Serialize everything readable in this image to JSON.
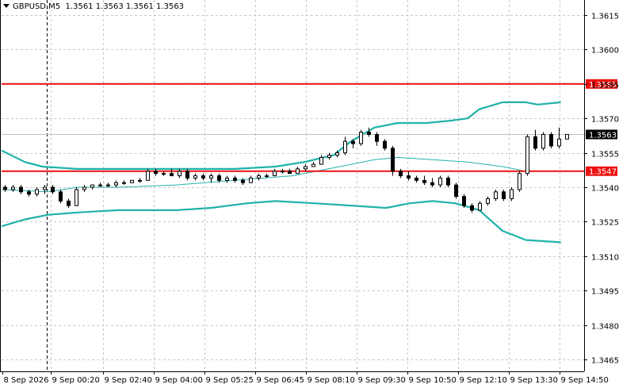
{
  "header": {
    "symbol": "GBPUSD,M5",
    "ohlc": "1.3561 1.3563 1.3561 1.3563"
  },
  "colors": {
    "grid": "#c8c8c8",
    "bands": "#20b2aa",
    "candle": "#000000",
    "resistance": "#ee1111",
    "price_label_bg": "#000000",
    "level_label_bg": "#ee1111"
  },
  "chart_data": {
    "type": "candlestick",
    "ylim": [
      1.3458,
      1.3618
    ],
    "y_ticks": [
      "1.3615",
      "1.3600",
      "1.3585",
      "1.3570",
      "1.3555",
      "1.3540",
      "1.3525",
      "1.3510",
      "1.3495",
      "1.3480",
      "1.3465"
    ],
    "x_ticks": [
      "8 Sep 2026",
      "9 Sep 00:20",
      "9 Sep 02:40",
      "9 Sep 04:00",
      "9 Sep 05:25",
      "9 Sep 06:45",
      "9 Sep 08:10",
      "9 Sep 09:30",
      "9 Sep 10:50",
      "9 Sep 12:10",
      "9 Sep 13:30",
      "9 Sep 14:50"
    ],
    "current_price": "1.3563",
    "levels": [
      {
        "value": "1.3585",
        "label": "1.3585"
      },
      {
        "value": "1.3547",
        "label": "1.3547"
      }
    ],
    "dashed_vline_x_index": 1,
    "candles": [
      [
        1.354,
        1.3541,
        1.3538,
        1.3539
      ],
      [
        1.3539,
        1.3541,
        1.3538,
        1.354
      ],
      [
        1.354,
        1.3541,
        1.3537,
        1.3538
      ],
      [
        1.3538,
        1.3539,
        1.3536,
        1.3537
      ],
      [
        1.3537,
        1.354,
        1.3536,
        1.3539
      ],
      [
        1.3539,
        1.3541,
        1.3537,
        1.354
      ],
      [
        1.354,
        1.3541,
        1.3537,
        1.3538
      ],
      [
        1.3538,
        1.3539,
        1.3533,
        1.3534
      ],
      [
        1.3534,
        1.3535,
        1.3531,
        1.3532
      ],
      [
        1.3532,
        1.354,
        1.3532,
        1.3539
      ],
      [
        1.3539,
        1.3541,
        1.3538,
        1.354
      ],
      [
        1.354,
        1.3541,
        1.3539,
        1.3541
      ],
      [
        1.3541,
        1.3542,
        1.354,
        1.3541
      ],
      [
        1.3541,
        1.3542,
        1.354,
        1.3541
      ],
      [
        1.3541,
        1.3543,
        1.354,
        1.3542
      ],
      [
        1.3542,
        1.3543,
        1.3541,
        1.3542
      ],
      [
        1.3542,
        1.3543,
        1.3542,
        1.3543
      ],
      [
        1.3543,
        1.3544,
        1.3542,
        1.3543
      ],
      [
        1.3543,
        1.3548,
        1.3543,
        1.3547
      ],
      [
        1.3547,
        1.3548,
        1.3545,
        1.3546
      ],
      [
        1.3546,
        1.3547,
        1.3545,
        1.3546
      ],
      [
        1.3546,
        1.3548,
        1.3545,
        1.3545
      ],
      [
        1.3545,
        1.3548,
        1.3544,
        1.3547
      ],
      [
        1.3547,
        1.3548,
        1.3543,
        1.3544
      ],
      [
        1.3544,
        1.3546,
        1.3543,
        1.3545
      ],
      [
        1.3545,
        1.3546,
        1.3543,
        1.3544
      ],
      [
        1.3544,
        1.3546,
        1.3542,
        1.3545
      ],
      [
        1.3545,
        1.3546,
        1.3542,
        1.3543
      ],
      [
        1.3543,
        1.3545,
        1.3542,
        1.3544
      ],
      [
        1.3544,
        1.3545,
        1.3542,
        1.3543
      ],
      [
        1.3543,
        1.3544,
        1.3541,
        1.3542
      ],
      [
        1.3542,
        1.3545,
        1.3542,
        1.3544
      ],
      [
        1.3544,
        1.3546,
        1.3543,
        1.3545
      ],
      [
        1.3545,
        1.3546,
        1.3544,
        1.3545
      ],
      [
        1.3545,
        1.3548,
        1.3545,
        1.3547
      ],
      [
        1.3547,
        1.3548,
        1.3546,
        1.3547
      ],
      [
        1.3547,
        1.3548,
        1.3546,
        1.3546
      ],
      [
        1.3546,
        1.3549,
        1.3546,
        1.3548
      ],
      [
        1.3548,
        1.355,
        1.3547,
        1.3549
      ],
      [
        1.3549,
        1.3551,
        1.3549,
        1.355
      ],
      [
        1.355,
        1.3554,
        1.355,
        1.3553
      ],
      [
        1.3553,
        1.3555,
        1.3552,
        1.3554
      ],
      [
        1.3554,
        1.3556,
        1.3553,
        1.3555
      ],
      [
        1.3555,
        1.3562,
        1.3554,
        1.356
      ],
      [
        1.356,
        1.3561,
        1.3557,
        1.3559
      ],
      [
        1.3559,
        1.3565,
        1.3558,
        1.3564
      ],
      [
        1.3564,
        1.3566,
        1.3562,
        1.3563
      ],
      [
        1.3563,
        1.3564,
        1.3558,
        1.356
      ],
      [
        1.356,
        1.3561,
        1.3556,
        1.3557
      ],
      [
        1.3557,
        1.3558,
        1.3545,
        1.3547
      ],
      [
        1.3547,
        1.3548,
        1.3544,
        1.3545
      ],
      [
        1.3545,
        1.3547,
        1.3543,
        1.3544
      ],
      [
        1.3544,
        1.3545,
        1.3542,
        1.3543
      ],
      [
        1.3543,
        1.3545,
        1.3541,
        1.3542
      ],
      [
        1.3542,
        1.3544,
        1.354,
        1.3541
      ],
      [
        1.3541,
        1.3545,
        1.354,
        1.3544
      ],
      [
        1.3544,
        1.3545,
        1.354,
        1.3541
      ],
      [
        1.3541,
        1.3542,
        1.3535,
        1.3536
      ],
      [
        1.3536,
        1.3537,
        1.3531,
        1.3532
      ],
      [
        1.3532,
        1.3533,
        1.3529,
        1.353
      ],
      [
        1.353,
        1.3534,
        1.353,
        1.3533
      ],
      [
        1.3533,
        1.3536,
        1.3532,
        1.3535
      ],
      [
        1.3535,
        1.3539,
        1.3534,
        1.3538
      ],
      [
        1.3538,
        1.3539,
        1.3534,
        1.3535
      ],
      [
        1.3535,
        1.354,
        1.3534,
        1.3539
      ],
      [
        1.3539,
        1.3547,
        1.3538,
        1.3546
      ],
      [
        1.3546,
        1.3563,
        1.3545,
        1.3562
      ],
      [
        1.3562,
        1.3565,
        1.3556,
        1.3557
      ],
      [
        1.3557,
        1.3564,
        1.3556,
        1.3563
      ],
      [
        1.3563,
        1.3564,
        1.3557,
        1.3558
      ],
      [
        1.3558,
        1.3566,
        1.3557,
        1.3561
      ],
      [
        1.3561,
        1.3563,
        1.3561,
        1.3563
      ]
    ],
    "bands": {
      "upper": [
        [
          0,
          1.3556
        ],
        [
          0.04,
          1.3551
        ],
        [
          0.07,
          1.3549
        ],
        [
          0.13,
          1.3548
        ],
        [
          0.2,
          1.3548
        ],
        [
          0.3,
          1.3548
        ],
        [
          0.4,
          1.3548
        ],
        [
          0.47,
          1.3549
        ],
        [
          0.52,
          1.3551
        ],
        [
          0.57,
          1.3554
        ],
        [
          0.6,
          1.356
        ],
        [
          0.64,
          1.3566
        ],
        [
          0.68,
          1.3568
        ],
        [
          0.73,
          1.3568
        ],
        [
          0.77,
          1.3569
        ],
        [
          0.8,
          1.357
        ],
        [
          0.82,
          1.3574
        ],
        [
          0.86,
          1.3577
        ],
        [
          0.9,
          1.3577
        ],
        [
          0.92,
          1.3576
        ],
        [
          0.96,
          1.3577
        ]
      ],
      "middle": [
        [
          0,
          1.3539
        ],
        [
          0.08,
          1.3538
        ],
        [
          0.13,
          1.354
        ],
        [
          0.2,
          1.354
        ],
        [
          0.3,
          1.3541
        ],
        [
          0.4,
          1.3543
        ],
        [
          0.5,
          1.3545
        ],
        [
          0.58,
          1.3549
        ],
        [
          0.64,
          1.3552
        ],
        [
          0.68,
          1.3553
        ],
        [
          0.74,
          1.3552
        ],
        [
          0.8,
          1.3551
        ],
        [
          0.86,
          1.3549
        ],
        [
          0.9,
          1.3547
        ],
        [
          0.96,
          1.3547
        ]
      ],
      "lower": [
        [
          0,
          1.3523
        ],
        [
          0.04,
          1.3526
        ],
        [
          0.08,
          1.3528
        ],
        [
          0.13,
          1.3529
        ],
        [
          0.2,
          1.353
        ],
        [
          0.3,
          1.353
        ],
        [
          0.36,
          1.3531
        ],
        [
          0.42,
          1.3533
        ],
        [
          0.47,
          1.3534
        ],
        [
          0.54,
          1.3533
        ],
        [
          0.6,
          1.3532
        ],
        [
          0.66,
          1.3531
        ],
        [
          0.7,
          1.3533
        ],
        [
          0.74,
          1.3534
        ],
        [
          0.78,
          1.3533
        ],
        [
          0.82,
          1.353
        ],
        [
          0.86,
          1.3521
        ],
        [
          0.9,
          1.3517
        ],
        [
          0.96,
          1.3516
        ]
      ]
    }
  }
}
